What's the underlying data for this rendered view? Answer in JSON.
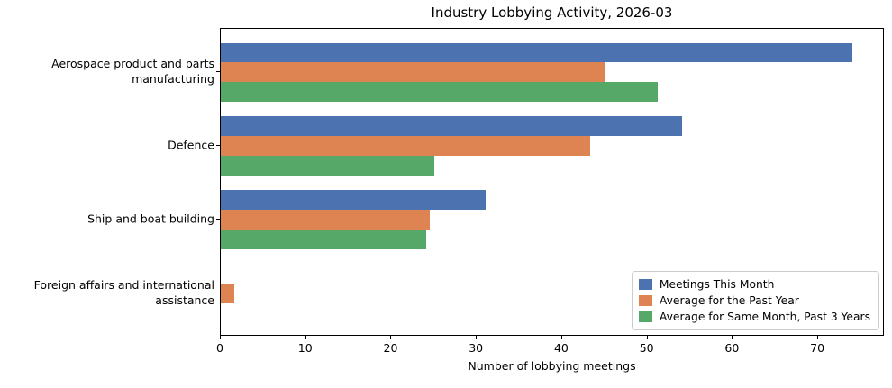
{
  "chart_data": {
    "type": "bar",
    "orientation": "horizontal",
    "title": "Industry Lobbying Activity, 2026-03",
    "xlabel": "Number of lobbying meetings",
    "ylabel": "",
    "categories": [
      "Aerospace product and parts\nmanufacturing",
      "Defence",
      "Ship and boat building",
      "Foreign affairs and international\nassistance"
    ],
    "series": [
      {
        "name": "Meetings This Month",
        "color": "#4c72b0",
        "values": [
          74,
          54,
          31,
          0
        ]
      },
      {
        "name": "Average for the Past Year",
        "color": "#dd8452",
        "values": [
          45,
          43.3,
          24.5,
          1.6
        ]
      },
      {
        "name": "Average for Same Month, Past 3 Years",
        "color": "#55a868",
        "values": [
          51.2,
          25,
          24.1,
          0
        ]
      }
    ],
    "xticks": [
      0,
      10,
      20,
      30,
      40,
      50,
      60,
      70
    ],
    "xlim": [
      0,
      77.8
    ],
    "grid": false,
    "legend_position": "lower right",
    "axis_color": "#000000",
    "background_color": "#ffffff"
  }
}
